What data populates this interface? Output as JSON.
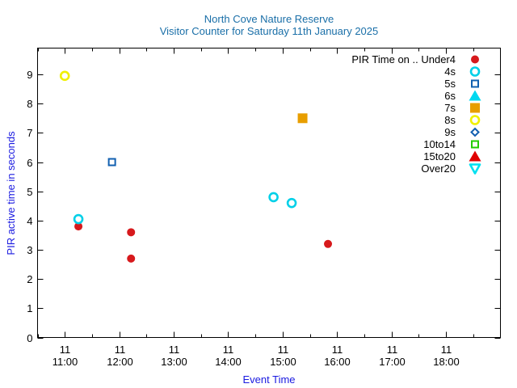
{
  "chart_data": {
    "type": "scatter",
    "title": "North Cove Nature Reserve",
    "subtitle": "Visitor Counter for Saturday 11th January 2025",
    "xlabel": "Event Time",
    "ylabel": "PIR active time in seconds",
    "ylim": [
      0,
      9.9
    ],
    "xlim": [
      "10:30",
      "19:00"
    ],
    "yticks": [
      0,
      1,
      2,
      3,
      4,
      5,
      6,
      7,
      8,
      9
    ],
    "xticks": [
      {
        "day": "11",
        "time": "11:00"
      },
      {
        "day": "11",
        "time": "12:00"
      },
      {
        "day": "11",
        "time": "13:00"
      },
      {
        "day": "11",
        "time": "14:00"
      },
      {
        "day": "11",
        "time": "15:00"
      },
      {
        "day": "11",
        "time": "16:00"
      },
      {
        "day": "11",
        "time": "17:00"
      },
      {
        "day": "11",
        "time": "18:00"
      }
    ],
    "legend_title": "PIR Time on ..",
    "legend_position": "top-right",
    "series": [
      {
        "name": "Under4",
        "color": "#d7191c",
        "marker": "circle-filled",
        "points": [
          {
            "x": "11:15",
            "y": 3.8
          },
          {
            "x": "12:13",
            "y": 3.6
          },
          {
            "x": "12:13",
            "y": 2.7
          },
          {
            "x": "15:50",
            "y": 3.2
          }
        ]
      },
      {
        "name": "4s",
        "color": "#00d0e8",
        "marker": "circle-open",
        "points": [
          {
            "x": "11:15",
            "y": 4.05
          },
          {
            "x": "14:50",
            "y": 4.8
          },
          {
            "x": "15:10",
            "y": 4.6
          }
        ]
      },
      {
        "name": "5s",
        "color": "#1260b0",
        "marker": "square-open",
        "points": [
          {
            "x": "11:52",
            "y": 6.0
          }
        ]
      },
      {
        "name": "6s",
        "color": "#00d8f0",
        "marker": "triangle-filled",
        "points": []
      },
      {
        "name": "7s",
        "color": "#e89e00",
        "marker": "square-filled",
        "points": [
          {
            "x": "15:22",
            "y": 7.5
          }
        ]
      },
      {
        "name": "8s",
        "color": "#f0f000",
        "marker": "circle-open",
        "points": [
          {
            "x": "11:00",
            "y": 8.95
          }
        ]
      },
      {
        "name": "9s",
        "color": "#1260b0",
        "marker": "diamond-open",
        "points": []
      },
      {
        "name": "10to14",
        "color": "#22cc00",
        "marker": "square-open",
        "points": []
      },
      {
        "name": "15to20",
        "color": "#e00000",
        "marker": "triangle-filled",
        "points": []
      },
      {
        "name": "Over20",
        "color": "#00e0f0",
        "marker": "triangle-down-open",
        "points": []
      }
    ]
  }
}
